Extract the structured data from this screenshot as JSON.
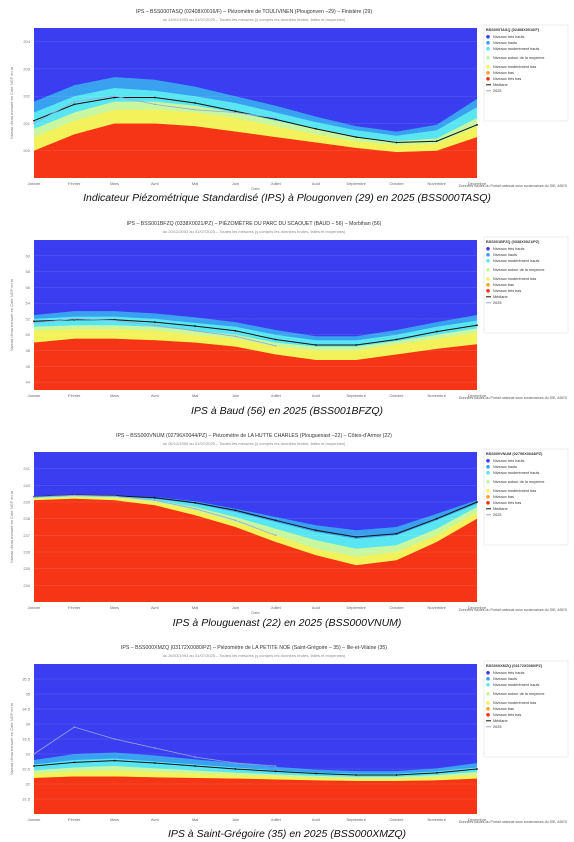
{
  "legend_labels": [
    "Niveaux très hauts",
    "Niveaux hauts",
    "Niveaux modérément hauts",
    "Niveaux autour de la moyenne",
    "Niveaux modérément bas",
    "Niveaux bas",
    "Niveaux très bas",
    "Médiane",
    "2025"
  ],
  "colors": {
    "tres_hauts": "#3a3df0",
    "hauts": "#3aa0f0",
    "moderement_hauts": "#59e6f2",
    "moyenne": "#c8f7a0",
    "moderement_bas": "#f4f25a",
    "bas": "#f7a128",
    "tres_bas": "#f53516",
    "mediane": "#111111",
    "annee": "#9aa8d8"
  },
  "months": [
    "Janvier",
    "Février",
    "Mars",
    "Avril",
    "Mai",
    "Juin",
    "Juillet",
    "Août",
    "Septembre",
    "Octobre",
    "Novembre",
    "Décembre"
  ],
  "chart_data": [
    {
      "type": "area",
      "title": "IPS – BSS000TASQ (02408X0016/F) – Piézomètre de TOULIVINEN (Plougonven –29) – Finistère (29)",
      "subtitle": "du 24/01/1993 au 31/07/2025 – Toutes les mesures (y compris les données brutes, faites et moyennes)",
      "xlabel": "Date",
      "ylabel": "Niveau d'eau mesuré en Cote NGF en m",
      "ylim": [
        199,
        204.5
      ],
      "yticks": [
        "204",
        "203",
        "202",
        "201",
        "200"
      ],
      "legend_title": "BSS000TASQ (02408X0016/F)",
      "source": "Données issues du Portail national sous souterraines du SIE, ADES",
      "caption": "Indicateur Piézométrique Standardisé (IPS) à Plougonven (29) en 2025 (BSS000TASQ)",
      "bounds": [
        [
          200.0,
          200.6,
          201.0,
          201.0,
          200.9,
          200.7,
          200.5,
          200.3,
          200.1,
          199.95,
          200.0,
          200.5
        ],
        [
          200.5,
          201.1,
          201.5,
          201.5,
          201.4,
          201.2,
          200.9,
          200.6,
          200.35,
          200.2,
          200.25,
          200.9
        ],
        [
          200.8,
          201.4,
          201.8,
          201.8,
          201.65,
          201.4,
          201.1,
          200.8,
          200.5,
          200.35,
          200.45,
          201.2
        ],
        [
          201.4,
          202.0,
          202.3,
          202.2,
          202.0,
          201.75,
          201.4,
          201.05,
          200.75,
          200.55,
          200.75,
          201.6
        ],
        [
          201.8,
          202.4,
          202.7,
          202.6,
          202.35,
          202.0,
          201.65,
          201.25,
          200.9,
          200.7,
          200.95,
          201.9
        ],
        [
          202.2,
          202.8,
          203.1,
          202.95,
          202.65,
          202.25,
          201.85,
          201.45,
          201.05,
          200.85,
          201.2,
          202.2
        ]
      ],
      "median": [
        201.1,
        201.7,
        201.95,
        201.95,
        201.75,
        201.45,
        201.15,
        200.8,
        200.5,
        200.3,
        200.35,
        200.95
      ],
      "series_2025": [
        201.0,
        201.8,
        202.0,
        201.7,
        201.5,
        201.4,
        201.2
      ]
    },
    {
      "type": "area",
      "title": "IPS – BSS001BFZQ (0338X0021/PZ) – PIÉZOMÈTRE DU PARC DU SCAOUET (BAUD – 56) – Morbihan (56)",
      "subtitle": "du 20/12/2003 au 31/07/2025 – Toutes les mesures (y compris les données brutes, faites et moyennes)",
      "xlabel": "",
      "ylabel": "Niveau d'eau mesuré en Cote NGF en m",
      "ylim": [
        43,
        62
      ],
      "yticks": [
        "60",
        "58",
        "56",
        "54",
        "52",
        "50",
        "48",
        "46",
        "44"
      ],
      "legend_title": "BSS001BFZQ (0338X0021/PZ)",
      "source": "Données issues du Portail national sous souterraines du SIE, ADES",
      "caption": "IPS à Baud (56) en 2025 (BSS001BFZQ)",
      "bounds": [
        [
          49.0,
          49.5,
          49.5,
          49.3,
          49.0,
          48.5,
          47.5,
          46.8,
          46.8,
          47.5,
          48.2,
          48.8
        ],
        [
          50.5,
          50.7,
          50.7,
          50.5,
          50.0,
          49.5,
          48.5,
          48.0,
          48.0,
          48.8,
          49.5,
          50.3
        ],
        [
          51.0,
          51.2,
          51.2,
          51.0,
          50.5,
          50.0,
          49.0,
          48.5,
          48.5,
          49.2,
          50.0,
          50.8
        ],
        [
          52.0,
          52.3,
          52.3,
          52.0,
          51.5,
          51.0,
          50.0,
          49.3,
          49.3,
          50.0,
          51.0,
          51.8
        ],
        [
          52.5,
          53.0,
          53.0,
          52.7,
          52.2,
          51.6,
          50.6,
          49.8,
          49.8,
          50.6,
          51.6,
          52.5
        ],
        [
          53.5,
          54.0,
          54.0,
          53.7,
          53.2,
          52.5,
          51.4,
          50.5,
          50.5,
          51.4,
          52.6,
          53.6
        ]
      ],
      "median": [
        51.7,
        51.9,
        51.9,
        51.6,
        51.1,
        50.5,
        49.4,
        48.7,
        48.7,
        49.4,
        50.4,
        51.2
      ],
      "series_2025": [
        51.5,
        52.0,
        51.8,
        51.2,
        50.5,
        49.8,
        48.6
      ]
    },
    {
      "type": "area",
      "title": "IPS – BSS000VNUM (02796X0044/PZ) – Piézomètre de LA HUTTE CHARLES (Plouguenast –22) – Côtes-d'Armor (22)",
      "subtitle": "du 05/12/1995 au 31/07/2025 – Toutes les mesures (y compris les données brutes, faites et moyennes)",
      "xlabel": "Date",
      "ylabel": "Niveau d'eau mesuré en Cote NGF en m",
      "ylim": [
        233,
        242
      ],
      "yticks": [
        "241",
        "240",
        "239",
        "238",
        "237",
        "236",
        "235",
        "234"
      ],
      "legend_title": "BSS000VNUM (02796X0044/PZ)",
      "source": "Données issues du Portail national sous souterraines du SIE, ADES",
      "caption": "IPS à Plouguenast (22) en 2025 (BSS000VNUM)",
      "bounds": [
        [
          239.1,
          239.2,
          239.1,
          238.8,
          238.2,
          237.5,
          236.6,
          235.8,
          235.2,
          235.5,
          236.6,
          238.0
        ],
        [
          239.2,
          239.3,
          239.25,
          239.0,
          238.5,
          237.8,
          237.0,
          236.2,
          235.7,
          236.0,
          237.0,
          238.4
        ],
        [
          239.25,
          239.35,
          239.3,
          239.1,
          238.7,
          238.1,
          237.4,
          236.7,
          236.2,
          236.4,
          237.4,
          238.7
        ],
        [
          239.3,
          239.4,
          239.35,
          239.2,
          238.9,
          238.4,
          237.8,
          237.2,
          236.8,
          237.0,
          237.9,
          238.9
        ],
        [
          239.35,
          239.45,
          239.4,
          239.3,
          239.05,
          238.6,
          238.1,
          237.6,
          237.3,
          237.5,
          238.3,
          239.1
        ],
        [
          239.4,
          239.5,
          239.45,
          239.4,
          239.2,
          238.9,
          238.5,
          238.1,
          237.9,
          238.0,
          238.6,
          239.3
        ]
      ],
      "median": [
        239.32,
        239.42,
        239.38,
        239.25,
        238.95,
        238.5,
        237.9,
        237.3,
        236.9,
        237.1,
        238.0,
        239.0
      ],
      "series_2025": [
        239.3,
        239.4,
        239.35,
        239.1,
        238.6,
        237.9,
        237.0
      ]
    },
    {
      "type": "area",
      "title": "IPS – BSS000XMZQ (03172X0080/PZ) – Piézomètre de LA PETITE NOÉ (Saint-Grégoire – 35) – Ille-et-Vilaine (35)",
      "subtitle": "du 26/03/1993 au 31/07/2025 – Toutes les mesures (y compris les données brutes, faites et moyennes)",
      "xlabel": "",
      "ylabel": "Niveau d'eau mesuré en Cote NGF en m",
      "ylim": [
        31,
        36
      ],
      "yticks": [
        "35.5",
        "35",
        "34.5",
        "34",
        "33.5",
        "33",
        "32.5",
        "32",
        "31.5"
      ],
      "legend_title": "BSS000XMZQ (03172X0080/PZ)",
      "source": "Données issues du Portail national sous souterraines du SIE, ADES",
      "caption": "IPS à Saint-Grégoire (35) en 2025 (BSS000XMZQ)",
      "bounds": [
        [
          32.2,
          32.25,
          32.25,
          32.22,
          32.2,
          32.18,
          32.15,
          32.12,
          32.1,
          32.1,
          32.12,
          32.18
        ],
        [
          32.35,
          32.42,
          32.45,
          32.4,
          32.35,
          32.3,
          32.25,
          32.2,
          32.18,
          32.18,
          32.22,
          32.3
        ],
        [
          32.45,
          32.55,
          32.6,
          32.52,
          32.45,
          32.38,
          32.32,
          32.27,
          32.24,
          32.24,
          32.3,
          32.4
        ],
        [
          32.65,
          32.8,
          32.85,
          32.75,
          32.65,
          32.55,
          32.45,
          32.38,
          32.34,
          32.34,
          32.42,
          32.55
        ],
        [
          32.8,
          33.0,
          33.05,
          32.95,
          32.82,
          32.7,
          32.57,
          32.48,
          32.43,
          32.43,
          32.52,
          32.7
        ],
        [
          33.05,
          33.3,
          33.35,
          33.2,
          33.05,
          32.9,
          32.75,
          32.62,
          32.55,
          32.55,
          32.66,
          32.9
        ]
      ],
      "median": [
        32.6,
        32.72,
        32.78,
        32.7,
        32.6,
        32.5,
        32.42,
        32.35,
        32.3,
        32.3,
        32.37,
        32.5
      ],
      "series_2025": [
        33.0,
        33.9,
        33.5,
        33.2,
        32.9,
        32.7,
        32.6
      ]
    }
  ]
}
